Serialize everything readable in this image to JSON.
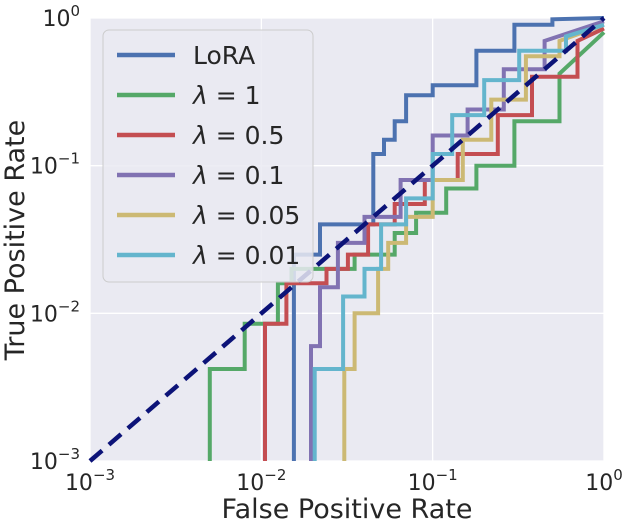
{
  "chart_data": {
    "type": "line",
    "title": "",
    "xlabel": "False Positive Rate",
    "ylabel": "True Positive Rate",
    "xscale": "log",
    "yscale": "log",
    "xlim": [
      0.001,
      1
    ],
    "ylim": [
      0.001,
      1
    ],
    "grid": true,
    "legend_position": "top-left",
    "x_tick_labels": [
      {
        "value": 0.001,
        "base": "10",
        "exp": "−3"
      },
      {
        "value": 0.01,
        "base": "10",
        "exp": "−2"
      },
      {
        "value": 0.1,
        "base": "10",
        "exp": "−1"
      },
      {
        "value": 1,
        "base": "10",
        "exp": "0"
      }
    ],
    "y_tick_labels": [
      {
        "value": 0.001,
        "base": "10",
        "exp": "−3"
      },
      {
        "value": 0.01,
        "base": "10",
        "exp": "−2"
      },
      {
        "value": 0.1,
        "base": "10",
        "exp": "−1"
      },
      {
        "value": 1,
        "base": "10",
        "exp": "0"
      }
    ],
    "reference_line": {
      "name": "chance",
      "color": "#0c1378",
      "style": "dashed",
      "x": [
        0.001,
        1
      ],
      "y": [
        0.001,
        1
      ]
    },
    "series": [
      {
        "name": "LoRA",
        "symbol": "",
        "label_text": "LoRA",
        "color": "#4c72b0",
        "x": [
          0.0155,
          0.0155,
          0.022,
          0.022,
          0.045,
          0.045,
          0.052,
          0.052,
          0.06,
          0.06,
          0.07,
          0.07,
          0.1,
          0.1,
          0.18,
          0.18,
          0.3,
          0.3,
          0.5,
          0.5,
          1
        ],
        "y": [
          0.001,
          0.025,
          0.025,
          0.04,
          0.04,
          0.12,
          0.12,
          0.15,
          0.15,
          0.2,
          0.2,
          0.3,
          0.3,
          0.35,
          0.35,
          0.6,
          0.6,
          0.9,
          0.9,
          0.98,
          1
        ]
      },
      {
        "name": "λ = 1",
        "symbol": "λ",
        "label_text": " = 1",
        "color": "#55a868",
        "x": [
          0.005,
          0.005,
          0.008,
          0.008,
          0.0125,
          0.0125,
          0.015,
          0.015,
          0.035,
          0.035,
          0.06,
          0.06,
          0.08,
          0.08,
          0.12,
          0.12,
          0.18,
          0.18,
          0.3,
          0.3,
          0.55,
          0.55,
          1
        ],
        "y": [
          0.001,
          0.0042,
          0.0042,
          0.0085,
          0.0085,
          0.016,
          0.016,
          0.02,
          0.02,
          0.025,
          0.025,
          0.035,
          0.035,
          0.048,
          0.048,
          0.07,
          0.07,
          0.1,
          0.1,
          0.2,
          0.2,
          0.42,
          0.8
        ]
      },
      {
        "name": "λ = 0.5",
        "symbol": "λ",
        "label_text": " = 0.5",
        "color": "#c44e52",
        "x": [
          0.0105,
          0.0105,
          0.014,
          0.014,
          0.024,
          0.024,
          0.032,
          0.032,
          0.042,
          0.042,
          0.06,
          0.06,
          0.09,
          0.09,
          0.14,
          0.14,
          0.24,
          0.24,
          0.38,
          0.38,
          0.7,
          0.7,
          1
        ],
        "y": [
          0.001,
          0.0085,
          0.0085,
          0.016,
          0.016,
          0.02,
          0.02,
          0.025,
          0.025,
          0.04,
          0.04,
          0.055,
          0.055,
          0.08,
          0.08,
          0.12,
          0.12,
          0.22,
          0.22,
          0.4,
          0.4,
          0.7,
          0.85
        ]
      },
      {
        "name": "λ = 0.1",
        "symbol": "λ",
        "label_text": " = 0.1",
        "color": "#8172b2",
        "x": [
          0.0195,
          0.0195,
          0.022,
          0.022,
          0.028,
          0.028,
          0.04,
          0.04,
          0.065,
          0.065,
          0.1,
          0.1,
          0.16,
          0.16,
          0.26,
          0.26,
          0.45,
          0.45,
          1
        ],
        "y": [
          0.001,
          0.006,
          0.006,
          0.015,
          0.015,
          0.03,
          0.03,
          0.045,
          0.045,
          0.08,
          0.08,
          0.16,
          0.16,
          0.24,
          0.24,
          0.45,
          0.45,
          0.7,
          0.95
        ]
      },
      {
        "name": "λ = 0.05",
        "symbol": "λ",
        "label_text": " = 0.05",
        "color": "#ccb974",
        "x": [
          0.0305,
          0.0305,
          0.035,
          0.035,
          0.048,
          0.048,
          0.055,
          0.055,
          0.07,
          0.07,
          0.1,
          0.1,
          0.15,
          0.15,
          0.22,
          0.22,
          0.35,
          0.35,
          0.55,
          0.55,
          1
        ],
        "y": [
          0.001,
          0.0042,
          0.0042,
          0.01,
          0.01,
          0.02,
          0.02,
          0.03,
          0.03,
          0.045,
          0.045,
          0.08,
          0.08,
          0.15,
          0.15,
          0.28,
          0.28,
          0.55,
          0.55,
          0.7,
          0.9
        ]
      },
      {
        "name": "λ = 0.01",
        "symbol": "λ",
        "label_text": " = 0.01",
        "color": "#64b5cd",
        "x": [
          0.0205,
          0.0205,
          0.03,
          0.03,
          0.04,
          0.04,
          0.05,
          0.05,
          0.07,
          0.07,
          0.1,
          0.1,
          0.13,
          0.13,
          0.2,
          0.2,
          0.32,
          0.32,
          0.6,
          0.6,
          1
        ],
        "y": [
          0.001,
          0.0042,
          0.0042,
          0.013,
          0.013,
          0.02,
          0.02,
          0.04,
          0.04,
          0.06,
          0.06,
          0.12,
          0.12,
          0.22,
          0.22,
          0.38,
          0.38,
          0.6,
          0.6,
          0.75,
          0.9
        ]
      }
    ]
  }
}
